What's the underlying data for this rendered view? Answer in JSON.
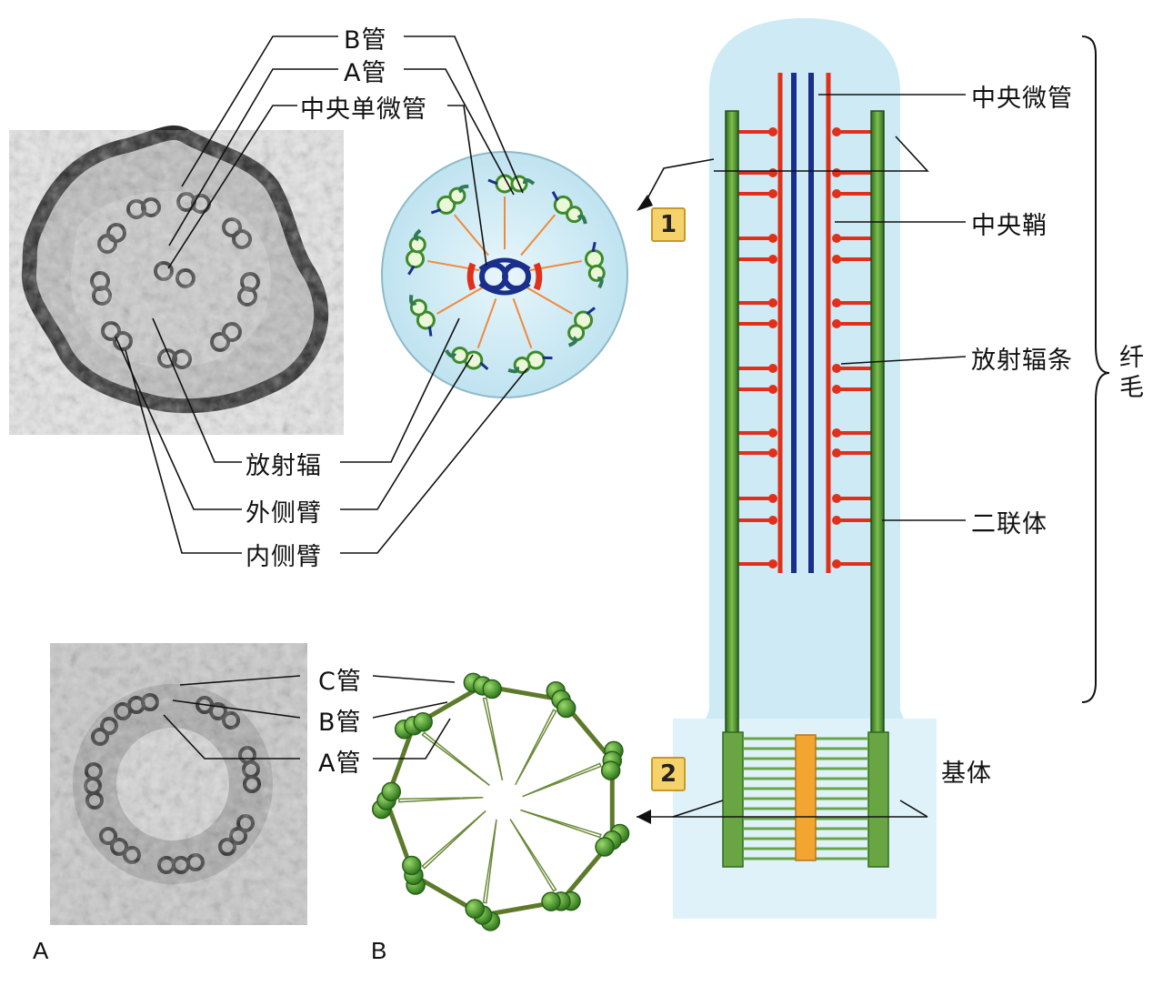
{
  "labels": {
    "b_tube_top": "B管",
    "a_tube_top": "A管",
    "central_singlet": "中央单微管",
    "radial_spoke_left": "放射辐",
    "outer_arm": "外侧臂",
    "inner_arm": "内侧臂",
    "central_microtubule": "中央微管",
    "central_sheath": "中央鞘",
    "radial_spoke_right": "放射辐条",
    "doublet": "二联体",
    "cilium": "纤毛",
    "basal_body": "基体",
    "c_tube": "C管",
    "b_tube_bottom": "B管",
    "a_tube_bottom": "A管"
  },
  "markers": {
    "one": "1",
    "two": "2"
  },
  "panels": {
    "a": "A",
    "b": "B"
  },
  "colors": {
    "cilium_fill": "#cdeaf5",
    "doublet_green": "#3e8a2a",
    "spoke_red": "#e0301c",
    "central_blue": "#1a2f8c",
    "basal_orange": "#f3a531",
    "marker_yellow": "#f6d36a"
  }
}
